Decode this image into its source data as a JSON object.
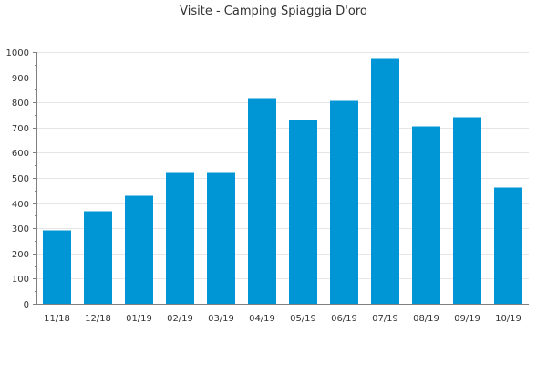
{
  "chart_data": {
    "type": "bar",
    "title": "Visite - Camping Spiaggia D'oro",
    "xlabel": "",
    "ylabel": "",
    "categories": [
      "11/18",
      "12/18",
      "01/19",
      "02/19",
      "03/19",
      "04/19",
      "05/19",
      "06/19",
      "07/19",
      "08/19",
      "09/19",
      "10/19"
    ],
    "values": [
      292,
      368,
      430,
      520,
      520,
      817,
      730,
      806,
      973,
      704,
      741,
      462
    ],
    "ylim": [
      0,
      1000
    ],
    "yticks": [
      "0",
      "100",
      "200",
      "300",
      "400",
      "500",
      "600",
      "700",
      "800",
      "900",
      "1000"
    ],
    "grid": true,
    "legend": "none",
    "bar_color": "#0096d6"
  }
}
